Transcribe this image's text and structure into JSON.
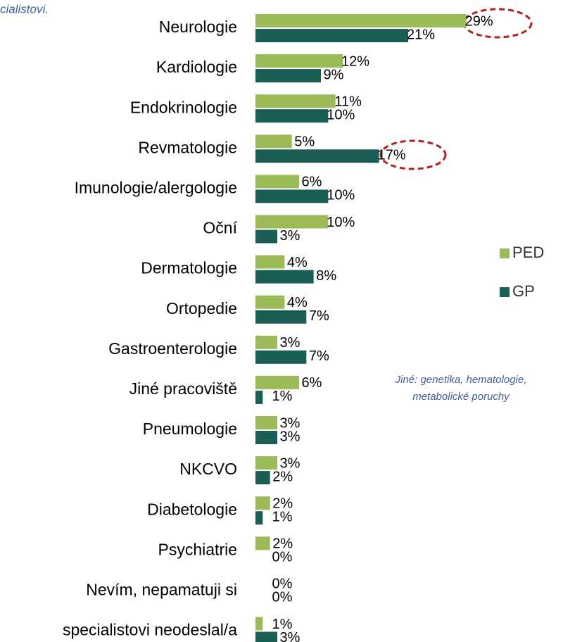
{
  "chart_data": {
    "type": "hbar",
    "subtitle": "cialistovi.",
    "categories": [
      "Neurologie",
      "Kardiologie",
      "Endokrinologie",
      "Revmatologie",
      "Imunologie/alergologie",
      "Oční",
      "Dermatologie",
      "Ortopedie",
      "Gastroenterologie",
      "Jiné pracoviště",
      "Pneumologie",
      "NKCVO",
      "Diabetologie",
      "Psychiatrie",
      "Nevím, nepamatuji si",
      "specialistovi neodeslal/a"
    ],
    "series": [
      {
        "name": "PED",
        "color": "#9bbb59",
        "values": [
          29,
          12,
          11,
          5,
          6,
          10,
          4,
          4,
          3,
          6,
          3,
          3,
          2,
          2,
          0,
          1
        ],
        "value_labels": [
          "29%",
          "12%",
          "11%",
          "5%",
          "6%",
          "10%",
          "4%",
          "4%",
          "3%",
          "6%",
          "3%",
          "3%",
          "2%",
          "2%",
          "0%",
          "1%"
        ]
      },
      {
        "name": "GP",
        "color": "#1b5e55",
        "values": [
          21,
          9,
          10,
          17,
          10,
          3,
          8,
          7,
          7,
          1,
          3,
          2,
          1,
          0,
          0,
          3
        ],
        "value_labels": [
          "21%",
          "9%",
          "10%",
          "17%",
          "10%",
          "3%",
          "8%",
          "7%",
          "7%",
          "1%",
          "3%",
          "2%",
          "1%",
          "0%",
          "0%",
          "3%"
        ]
      }
    ],
    "xlim": [
      0,
      30
    ],
    "note": [
      "Jiné: genetika, hematologie,",
      "metabolické poruchy"
    ]
  }
}
